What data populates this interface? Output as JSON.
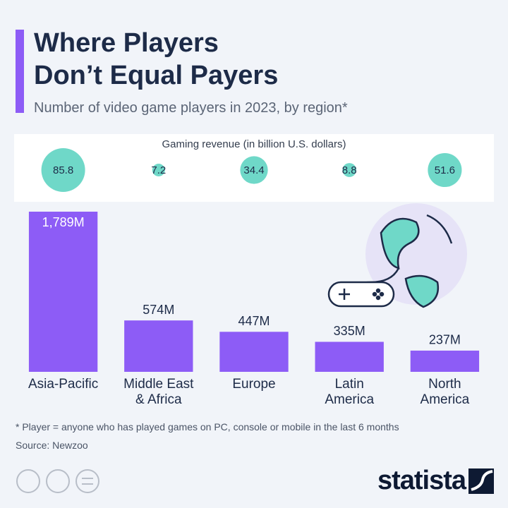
{
  "chart_data": [
    {
      "type": "bar",
      "title": "Where Players Don’t Equal Payers",
      "subtitle": "Number of video game players in 2023, by region*",
      "categories": [
        "Asia-Pacific",
        "Middle East & Africa",
        "Europe",
        "Latin America",
        "North America"
      ],
      "values": [
        1789,
        574,
        447,
        335,
        237
      ],
      "value_labels": [
        "1,789M",
        "574M",
        "447M",
        "335M",
        "237M"
      ],
      "color": "#8d5cf6",
      "note": "* Player = anyone who has played games on PC, console or mobile in the last 6 months",
      "source": "Source: Newzoo",
      "brand": "statista"
    },
    {
      "type": "bubble",
      "title": "Gaming revenue (in billion U.S. dollars)",
      "values": [
        85.8,
        7.2,
        34.4,
        8.8,
        51.6
      ],
      "color": "#6fd8c8"
    }
  ]
}
